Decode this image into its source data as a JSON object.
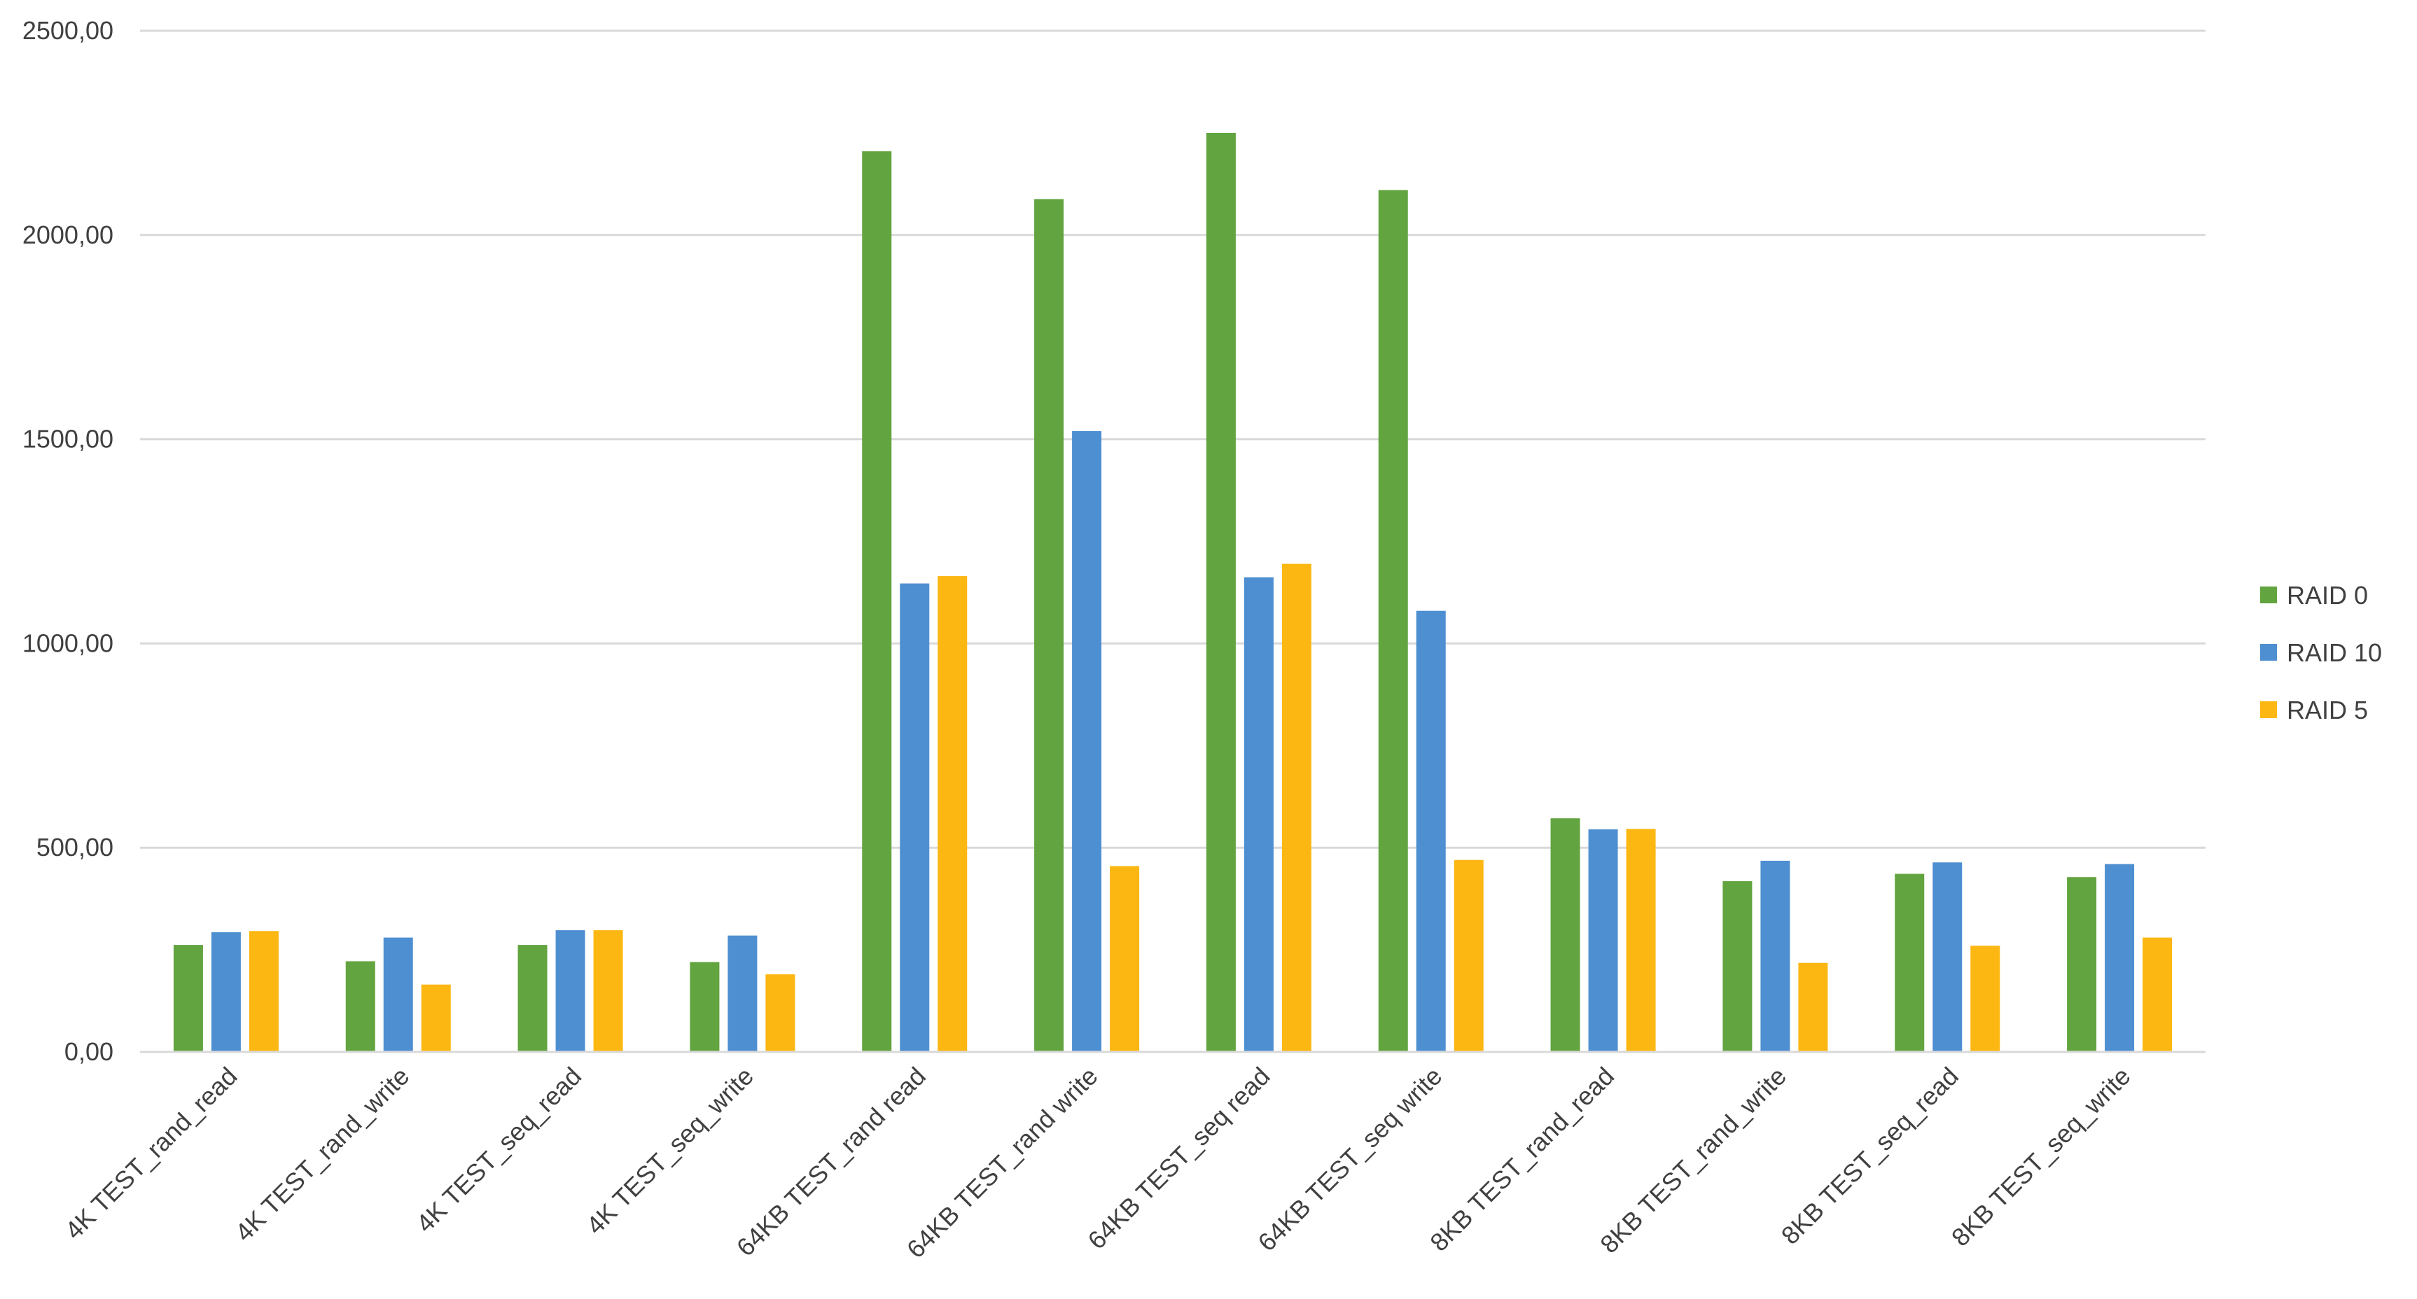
{
  "chart_data": {
    "type": "bar",
    "categories": [
      "4K TEST_rand_read",
      "4K TEST_rand_write",
      "4K TEST_seq_read",
      "4K TEST_seq_write",
      "64KB TEST_rand read",
      "64KB TEST_rand write",
      "64KB TEST_seq read",
      "64KB TEST_seq write",
      "8KB TEST_rand_read",
      "8KB TEST_rand_write",
      "8KB TEST_seq_read",
      "8KB TEST_seq_write"
    ],
    "series": [
      {
        "name": "RAID 0",
        "color": "#62a43f",
        "values": [
          262,
          222,
          262,
          220,
          2205,
          2088,
          2250,
          2110,
          572,
          418,
          436,
          428
        ]
      },
      {
        "name": "RAID 10",
        "color": "#4e8fd1",
        "values": [
          293,
          280,
          298,
          285,
          1147,
          1520,
          1162,
          1080,
          545,
          468,
          464,
          460
        ]
      },
      {
        "name": "RAID 5",
        "color": "#fdb713",
        "values": [
          296,
          165,
          298,
          190,
          1165,
          455,
          1195,
          470,
          546,
          218,
          260,
          280
        ]
      }
    ],
    "y_ticks": [
      "0,00",
      "500,00",
      "1000,00",
      "1500,00",
      "2000,00",
      "2500,00"
    ],
    "ylim": [
      0,
      2500
    ],
    "grid": true,
    "legend_position": "right",
    "title": "",
    "xlabel": "",
    "ylabel": ""
  }
}
